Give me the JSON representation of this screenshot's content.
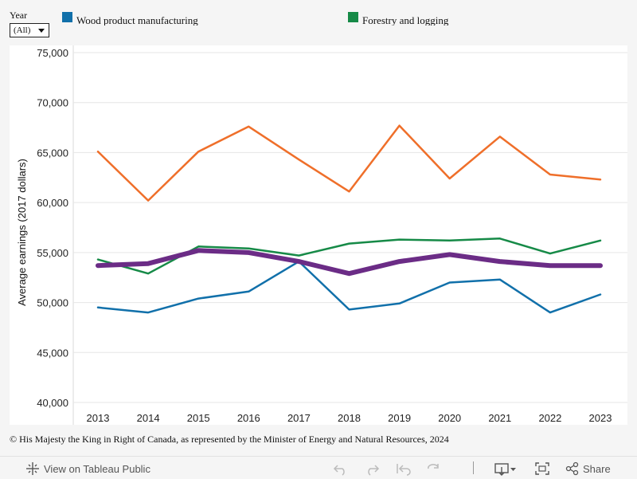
{
  "filter": {
    "label": "Year",
    "value": "(All)"
  },
  "legend": [
    {
      "label": "Wood product manufacturing",
      "color": "#1170aa"
    },
    {
      "label": "Forestry and logging",
      "color": "#168a47"
    }
  ],
  "chart_data": {
    "type": "line",
    "ylabel": "Average earnings (2017 dollars)",
    "xlabel": "",
    "ylim": [
      40000,
      75000
    ],
    "y_ticks": [
      40000,
      45000,
      50000,
      55000,
      60000,
      65000,
      70000,
      75000
    ],
    "y_tick_labels": [
      "40,000",
      "45,000",
      "50,000",
      "55,000",
      "60,000",
      "65,000",
      "70,000",
      "75,000"
    ],
    "x": [
      "2013",
      "2014",
      "2015",
      "2016",
      "2017",
      "2018",
      "2019",
      "2020",
      "2021",
      "2022",
      "2023"
    ],
    "series": [
      {
        "name": "Orange series (not labelled in visible legend)",
        "color": "#ef6f2a",
        "width": 2.5,
        "values": [
          65100,
          60200,
          65100,
          67600,
          64300,
          61100,
          67700,
          62400,
          66600,
          62800,
          62300
        ]
      },
      {
        "name": "Forestry and logging",
        "color": "#168a47",
        "width": 2.5,
        "values": [
          54300,
          52900,
          55600,
          55400,
          54700,
          55900,
          56300,
          56200,
          56400,
          54900,
          56200
        ]
      },
      {
        "name": "Wood product manufacturing",
        "color": "#1170aa",
        "width": 2.5,
        "values": [
          49500,
          49000,
          50400,
          51100,
          54100,
          49300,
          49900,
          52000,
          52300,
          49000,
          50800
        ]
      },
      {
        "name": "Purple series (not labelled in visible legend)",
        "color": "#6b2c86",
        "width": 6,
        "values": [
          53700,
          53900,
          55200,
          55000,
          54100,
          52900,
          54100,
          54800,
          54100,
          53700,
          53700
        ]
      }
    ]
  },
  "copyright": "© His Majesty the King in Right of Canada, as represented by the Minister of Energy and Natural Resources, 2024",
  "footer": {
    "view_label": "View on Tableau Public",
    "share_label": "Share",
    "icons": [
      "undo-icon",
      "redo-icon",
      "revert-icon",
      "refresh-icon",
      "download-icon",
      "fullscreen-icon",
      "share-icon"
    ]
  }
}
